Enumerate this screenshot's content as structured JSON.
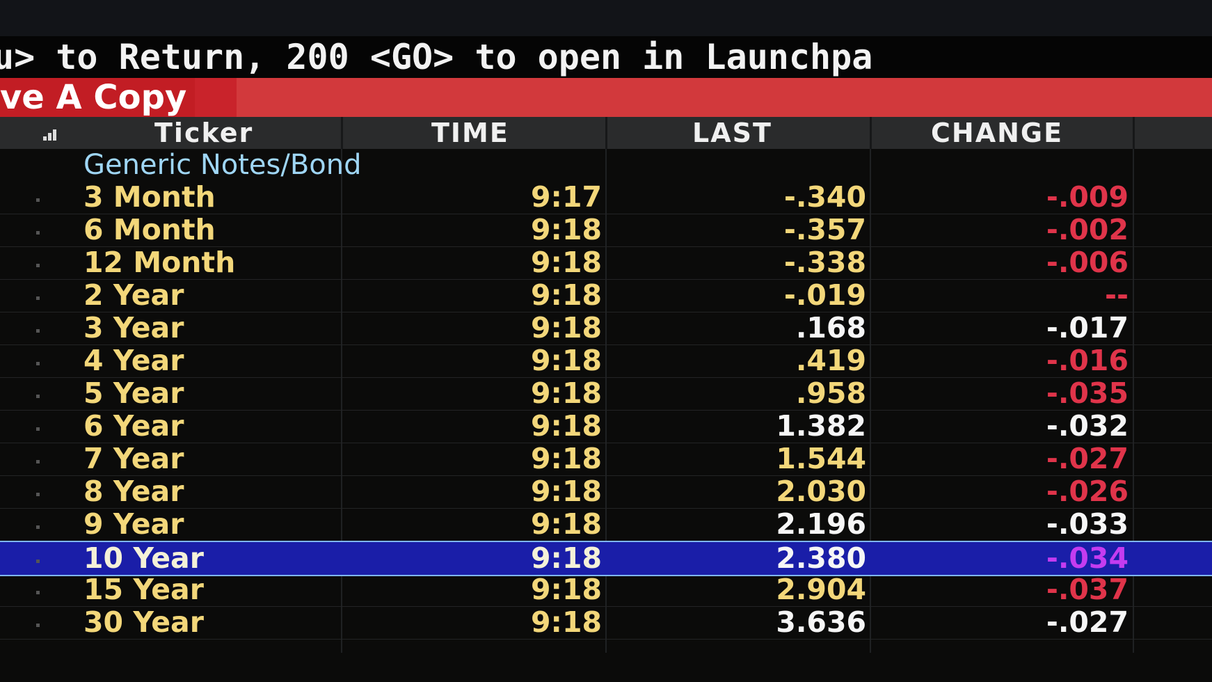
{
  "command_line": "u> to Return, 200 <GO> to open in Launchpa",
  "banner": "ve A Copy",
  "table": {
    "columns": [
      "Ticker",
      "TIME",
      "LAST",
      "CHANGE"
    ],
    "group": "Generic Notes/Bond",
    "rows": [
      [
        "3 Month",
        "9:17",
        "-.340",
        "-.009"
      ],
      [
        "6 Month",
        "9:18",
        "-.357",
        "-.002"
      ],
      [
        "12 Month",
        "9:18",
        "-.338",
        "-.006"
      ],
      [
        "2 Year",
        "9:18",
        "-.019",
        "--"
      ],
      [
        "3 Year",
        "9:18",
        ".168",
        "-.017"
      ],
      [
        "4 Year",
        "9:18",
        ".419",
        "-.016"
      ],
      [
        "5 Year",
        "9:18",
        ".958",
        "-.035"
      ],
      [
        "6 Year",
        "9:18",
        "1.382",
        "-.032"
      ],
      [
        "7 Year",
        "9:18",
        "1.544",
        "-.027"
      ],
      [
        "8 Year",
        "9:18",
        "2.030",
        "-.026"
      ],
      [
        "9 Year",
        "9:18",
        "2.196",
        "-.033"
      ],
      [
        "10 Year",
        "9:18",
        "2.380",
        "-.034"
      ],
      [
        "15 Year",
        "9:18",
        "2.904",
        "-.037"
      ],
      [
        "30 Year",
        "9:18",
        "3.636",
        "-.027"
      ]
    ]
  }
}
